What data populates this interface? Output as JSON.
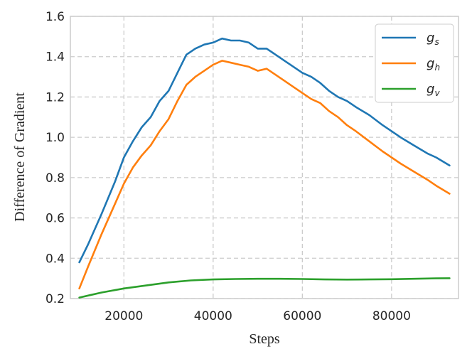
{
  "chart_data": {
    "type": "line",
    "title": "",
    "xlabel": "Steps",
    "ylabel": "Difference of Gradient",
    "xlim": [
      8000,
      95000
    ],
    "ylim": [
      0.2,
      1.6
    ],
    "xticks": [
      20000,
      40000,
      60000,
      80000
    ],
    "yticks": [
      0.2,
      0.4,
      0.6,
      0.8,
      1.0,
      1.2,
      1.4,
      1.6
    ],
    "xtick_labels": [
      "20000",
      "40000",
      "60000",
      "80000"
    ],
    "ytick_labels": [
      "0.2",
      "0.4",
      "0.6",
      "0.8",
      "1.0",
      "1.2",
      "1.4",
      "1.6"
    ],
    "grid": true,
    "legend_position": "top-right",
    "series": [
      {
        "name": "g",
        "subscript": "s",
        "color": "#1f77b4",
        "x": [
          10000,
          12000,
          15000,
          18000,
          20000,
          22000,
          24000,
          26000,
          28000,
          30000,
          32000,
          34000,
          36000,
          38000,
          40000,
          42000,
          44000,
          46000,
          48000,
          50000,
          52000,
          54000,
          56000,
          58000,
          60000,
          62000,
          64000,
          66000,
          68000,
          70000,
          72000,
          75000,
          78000,
          80000,
          82000,
          85000,
          88000,
          90000,
          93000
        ],
        "y": [
          0.38,
          0.47,
          0.62,
          0.78,
          0.9,
          0.98,
          1.05,
          1.1,
          1.18,
          1.23,
          1.32,
          1.41,
          1.44,
          1.46,
          1.47,
          1.49,
          1.48,
          1.48,
          1.47,
          1.44,
          1.44,
          1.41,
          1.38,
          1.35,
          1.32,
          1.3,
          1.27,
          1.23,
          1.2,
          1.18,
          1.15,
          1.11,
          1.06,
          1.03,
          1.0,
          0.96,
          0.92,
          0.9,
          0.86
        ]
      },
      {
        "name": "g",
        "subscript": "h",
        "color": "#ff7f0e",
        "x": [
          10000,
          12000,
          15000,
          18000,
          20000,
          22000,
          24000,
          26000,
          28000,
          30000,
          32000,
          34000,
          36000,
          38000,
          40000,
          42000,
          44000,
          46000,
          48000,
          50000,
          52000,
          54000,
          56000,
          58000,
          60000,
          62000,
          64000,
          66000,
          68000,
          70000,
          72000,
          75000,
          78000,
          80000,
          82000,
          85000,
          88000,
          90000,
          93000
        ],
        "y": [
          0.25,
          0.36,
          0.52,
          0.67,
          0.77,
          0.85,
          0.91,
          0.96,
          1.03,
          1.09,
          1.18,
          1.26,
          1.3,
          1.33,
          1.36,
          1.38,
          1.37,
          1.36,
          1.35,
          1.33,
          1.34,
          1.31,
          1.28,
          1.25,
          1.22,
          1.19,
          1.17,
          1.13,
          1.1,
          1.06,
          1.03,
          0.98,
          0.93,
          0.9,
          0.87,
          0.83,
          0.79,
          0.76,
          0.72
        ]
      },
      {
        "name": "g",
        "subscript": "v",
        "color": "#2ca02c",
        "x": [
          10000,
          15000,
          20000,
          25000,
          30000,
          35000,
          40000,
          45000,
          50000,
          55000,
          60000,
          65000,
          70000,
          75000,
          80000,
          85000,
          90000,
          93000
        ],
        "y": [
          0.205,
          0.23,
          0.25,
          0.265,
          0.28,
          0.29,
          0.295,
          0.297,
          0.298,
          0.298,
          0.297,
          0.295,
          0.294,
          0.295,
          0.296,
          0.298,
          0.3,
          0.301
        ]
      }
    ]
  }
}
